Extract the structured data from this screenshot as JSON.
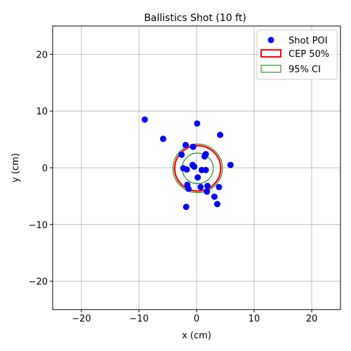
{
  "chart_data": {
    "type": "scatter",
    "title": "Ballistics Shot (10 ft)",
    "xlabel": "x (cm)",
    "ylabel": "y (cm)",
    "xlim": [
      -25,
      25
    ],
    "ylim": [
      -25,
      25
    ],
    "xticks": [
      -20,
      -10,
      0,
      10,
      20
    ],
    "yticks": [
      -20,
      -10,
      0,
      10,
      20
    ],
    "grid": true,
    "legend_position": "top-right",
    "legend": [
      {
        "label": "Shot POI",
        "kind": "marker",
        "color": "#0000ff"
      },
      {
        "label": "CEP 50%",
        "kind": "patch",
        "color": "#ff0000"
      },
      {
        "label": "95% CI",
        "kind": "patch",
        "color": "#008000"
      }
    ],
    "series": [
      {
        "name": "Shot POI",
        "color": "#0000ff",
        "points": [
          [
            -9.0,
            8.5
          ],
          [
            -5.8,
            5.1
          ],
          [
            0.1,
            7.8
          ],
          [
            4.1,
            5.8
          ],
          [
            -1.9,
            4.0
          ],
          [
            -0.6,
            3.7
          ],
          [
            -2.6,
            2.3
          ],
          [
            1.4,
            2.0
          ],
          [
            1.6,
            2.4
          ],
          [
            -2.3,
            -0.1
          ],
          [
            -1.7,
            -0.3
          ],
          [
            -0.7,
            0.5
          ],
          [
            -0.4,
            0.2
          ],
          [
            0.9,
            -0.4
          ],
          [
            1.6,
            -0.4
          ],
          [
            5.9,
            0.5
          ],
          [
            0.2,
            -1.7
          ],
          [
            -1.6,
            -3.0
          ],
          [
            -1.4,
            -3.7
          ],
          [
            1.9,
            -3.2
          ],
          [
            1.8,
            -4.2
          ],
          [
            0.7,
            -3.4
          ],
          [
            3.9,
            -3.4
          ],
          [
            3.1,
            -5.1
          ],
          [
            3.6,
            -6.4
          ],
          [
            -1.8,
            -6.9
          ]
        ]
      }
    ],
    "circles": [
      {
        "name": "CEP 50%",
        "cx": 0.2,
        "cy": -0.1,
        "r": 4.0,
        "color": "#ff0000"
      },
      {
        "name": "95% CI",
        "cx": 0.2,
        "cy": -0.1,
        "r": 4.3,
        "color": "#008000"
      },
      {
        "name": "95% CI",
        "cx": 0.2,
        "cy": -0.1,
        "r": 2.7,
        "color": "#008000"
      }
    ]
  }
}
